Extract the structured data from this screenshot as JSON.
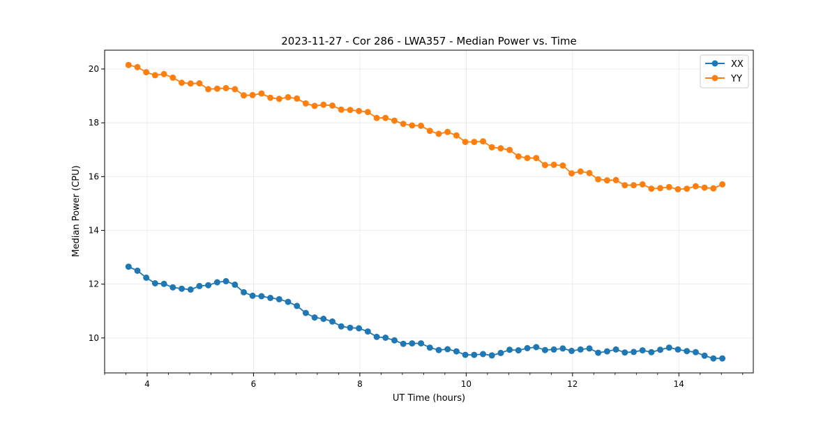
{
  "chart_data": {
    "type": "line",
    "title": "2023-11-27 - Cor 286 - LWA357 - Median Power vs. Time",
    "xlabel": "UT Time (hours)",
    "ylabel": "Median Power (CPU)",
    "xlim": [
      3.2,
      15.4
    ],
    "ylim": [
      8.7,
      20.7
    ],
    "xticks": [
      4,
      6,
      8,
      10,
      12,
      14
    ],
    "yticks": [
      10,
      12,
      14,
      16,
      18,
      20
    ],
    "grid": true,
    "legend_position": "top-right",
    "x": [
      3.65,
      3.817,
      3.983,
      4.15,
      4.317,
      4.483,
      4.65,
      4.817,
      4.983,
      5.15,
      5.317,
      5.483,
      5.65,
      5.817,
      5.983,
      6.15,
      6.317,
      6.483,
      6.65,
      6.817,
      6.983,
      7.15,
      7.317,
      7.483,
      7.65,
      7.817,
      7.983,
      8.15,
      8.317,
      8.483,
      8.65,
      8.817,
      8.983,
      9.15,
      9.317,
      9.483,
      9.65,
      9.817,
      9.983,
      10.15,
      10.317,
      10.483,
      10.65,
      10.817,
      10.983,
      11.15,
      11.317,
      11.483,
      11.65,
      11.817,
      11.983,
      12.15,
      12.317,
      12.483,
      12.65,
      12.817,
      12.983,
      13.15,
      13.317,
      13.483,
      13.65,
      13.817,
      13.983,
      14.15,
      14.317,
      14.483,
      14.65,
      14.817
    ],
    "series": [
      {
        "name": "XX",
        "color": "#1f77b4",
        "values": [
          12.65,
          12.5,
          12.24,
          12.03,
          12.01,
          11.88,
          11.83,
          11.8,
          11.93,
          11.96,
          12.07,
          12.11,
          11.98,
          11.7,
          11.57,
          11.55,
          11.49,
          11.44,
          11.34,
          11.19,
          10.93,
          10.76,
          10.71,
          10.61,
          10.43,
          10.38,
          10.36,
          10.24,
          10.04,
          10.01,
          9.91,
          9.78,
          9.8,
          9.8,
          9.64,
          9.55,
          9.58,
          9.5,
          9.37,
          9.37,
          9.4,
          9.35,
          9.44,
          9.56,
          9.54,
          9.62,
          9.66,
          9.55,
          9.57,
          9.61,
          9.52,
          9.57,
          9.61,
          9.45,
          9.5,
          9.57,
          9.46,
          9.48,
          9.54,
          9.47,
          9.56,
          9.64,
          9.57,
          9.51,
          9.47,
          9.34,
          9.24,
          9.24
        ]
      },
      {
        "name": "YY",
        "color": "#ff7f0e",
        "values": [
          20.15,
          20.07,
          19.88,
          19.77,
          19.81,
          19.68,
          19.49,
          19.46,
          19.47,
          19.25,
          19.27,
          19.29,
          19.25,
          19.02,
          19.03,
          19.09,
          18.93,
          18.89,
          18.95,
          18.9,
          18.72,
          18.63,
          18.67,
          18.64,
          18.49,
          18.48,
          18.44,
          18.4,
          18.18,
          18.18,
          18.08,
          17.96,
          17.9,
          17.89,
          17.7,
          17.59,
          17.66,
          17.53,
          17.29,
          17.29,
          17.31,
          17.09,
          17.05,
          16.99,
          16.75,
          16.69,
          16.69,
          16.43,
          16.44,
          16.41,
          16.12,
          16.19,
          16.13,
          15.9,
          15.86,
          15.87,
          15.68,
          15.68,
          15.71,
          15.55,
          15.57,
          15.61,
          15.53,
          15.55,
          15.64,
          15.59,
          15.56,
          15.71
        ]
      }
    ]
  }
}
